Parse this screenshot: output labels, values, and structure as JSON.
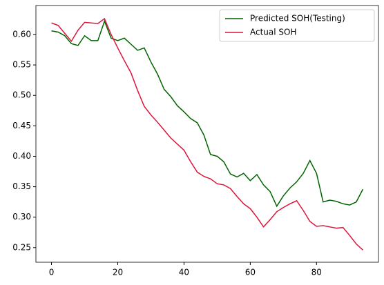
{
  "chart_data": {
    "type": "line",
    "x": [
      0,
      2,
      4,
      6,
      8,
      10,
      12,
      14,
      16,
      18,
      20,
      22,
      24,
      26,
      28,
      30,
      32,
      34,
      36,
      38,
      40,
      42,
      44,
      46,
      48,
      50,
      52,
      54,
      56,
      58,
      60,
      62,
      64,
      66,
      68,
      70,
      72,
      74,
      76,
      78,
      80,
      82,
      84,
      86,
      88,
      90,
      92,
      94
    ],
    "series": [
      {
        "name": "Predicted SOH(Testing)",
        "color": "#006400",
        "values": [
          0.606,
          0.604,
          0.598,
          0.585,
          0.582,
          0.598,
          0.59,
          0.59,
          0.622,
          0.594,
          0.59,
          0.594,
          0.584,
          0.574,
          0.578,
          0.555,
          0.535,
          0.51,
          0.498,
          0.483,
          0.473,
          0.462,
          0.455,
          0.435,
          0.403,
          0.4,
          0.391,
          0.371,
          0.366,
          0.372,
          0.36,
          0.37,
          0.353,
          0.342,
          0.318,
          0.335,
          0.348,
          0.358,
          0.372,
          0.393,
          0.372,
          0.325,
          0.328,
          0.326,
          0.322,
          0.32,
          0.325,
          0.346
        ]
      },
      {
        "name": "Actual SOH",
        "color": "#dc143c",
        "values": [
          0.619,
          0.615,
          0.602,
          0.589,
          0.607,
          0.62,
          0.619,
          0.618,
          0.626,
          0.6,
          0.578,
          0.557,
          0.537,
          0.508,
          0.482,
          0.468,
          0.456,
          0.443,
          0.43,
          0.42,
          0.41,
          0.391,
          0.374,
          0.367,
          0.363,
          0.355,
          0.353,
          0.347,
          0.334,
          0.322,
          0.314,
          0.3,
          0.284,
          0.296,
          0.309,
          0.316,
          0.322,
          0.327,
          0.311,
          0.293,
          0.285,
          0.286,
          0.284,
          0.282,
          0.283,
          0.27,
          0.256,
          0.246
        ]
      }
    ],
    "xlim": [
      -4.7,
      98.7
    ],
    "xticks": [
      0,
      20,
      40,
      60,
      80
    ],
    "ylim": [
      0.226,
      0.6476
    ],
    "yticks": [
      0.25,
      {
        "value": 0.3,
        "label": "0.30"
      },
      0.35,
      {
        "value": 0.4,
        "label": "0.40"
      },
      0.45,
      {
        "value": 0.5,
        "label": "0.50"
      },
      0.55,
      {
        "value": 0.6,
        "label": "0.60"
      }
    ],
    "grid": false,
    "legend": "upper right"
  }
}
